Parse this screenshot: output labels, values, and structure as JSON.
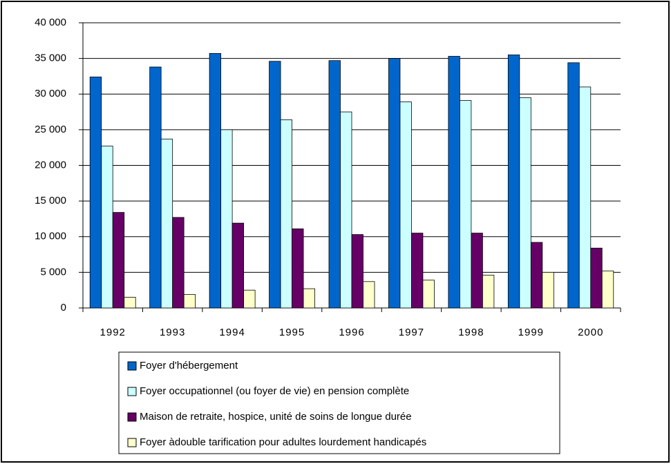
{
  "chart_data": {
    "type": "bar",
    "categories": [
      "1992",
      "1993",
      "1994",
      "1995",
      "1996",
      "1997",
      "1998",
      "1999",
      "2000"
    ],
    "series": [
      {
        "name": "Foyer d'hébergement",
        "color": "#0066cc",
        "values": [
          32400,
          33800,
          35700,
          34600,
          34700,
          35000,
          35300,
          35500,
          34400
        ]
      },
      {
        "name": "Foyer occupationnel (ou foyer de vie) en pension complète",
        "color": "#ccffff",
        "values": [
          22700,
          23700,
          25000,
          26400,
          27500,
          28900,
          29100,
          29500,
          31000
        ]
      },
      {
        "name": "Maison de retraite, hospice, unité de soins de longue durée",
        "color": "#660066",
        "values": [
          13400,
          12700,
          11900,
          11100,
          10300,
          10500,
          10500,
          9200,
          8400
        ]
      },
      {
        "name": "Foyer àdouble tarification pour adultes lourdement handicapés",
        "color": "#ffffcc",
        "values": [
          1500,
          1900,
          2500,
          2700,
          3700,
          3900,
          4600,
          5000,
          5200
        ]
      }
    ],
    "ylim": [
      0,
      40000
    ],
    "yticks": [
      0,
      {
        "value": 5000,
        "label": "5 000"
      },
      {
        "value": 10000,
        "label": "10 000"
      },
      {
        "value": 15000,
        "label": "15 000"
      },
      {
        "value": 20000,
        "label": "20 000"
      },
      {
        "value": 25000,
        "label": "25 000"
      },
      {
        "value": 30000,
        "label": "30 000"
      },
      {
        "value": 35000,
        "label": "35 000"
      },
      {
        "value": 40000,
        "label": "40 000"
      }
    ],
    "grid": true
  }
}
